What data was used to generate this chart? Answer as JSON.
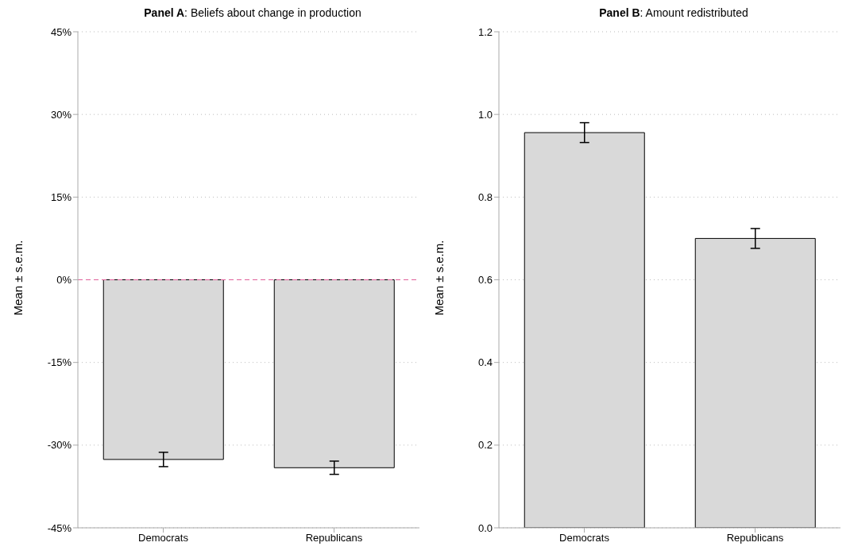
{
  "chart_data": [
    {
      "type": "bar",
      "title": "Panel A: Beliefs about change in production",
      "ylabel": "Mean ± s.e.m.",
      "categories": [
        "Democrats",
        "Republicans"
      ],
      "values": [
        -32.6,
        -34.1
      ],
      "errors": [
        1.3,
        1.2
      ],
      "color": "#d9d9d9",
      "ylim": [
        -45,
        45
      ],
      "yticks": [
        {
          "value": -45,
          "label": "-45%"
        },
        {
          "value": -30,
          "label": "-30%"
        },
        {
          "value": -15,
          "label": "-15%"
        },
        {
          "value": 0,
          "label": "0%"
        },
        {
          "value": 15,
          "label": "15%"
        },
        {
          "value": 30,
          "label": "30%"
        },
        {
          "value": 45,
          "label": "45%"
        }
      ],
      "grid": "y",
      "ref_lines": [
        {
          "axis": "y",
          "value": 0,
          "color": "#e0609a",
          "line_style": "dashed"
        }
      ]
    },
    {
      "type": "bar",
      "title": "Panel B: Amount redistributed",
      "ylabel": "Mean ± s.e.m.",
      "categories": [
        "Democrats",
        "Republicans"
      ],
      "values": [
        0.956,
        0.7
      ],
      "errors": [
        0.024,
        0.024
      ],
      "color": "#d9d9d9",
      "ylim": [
        0,
        1.2
      ],
      "yticks": [
        {
          "value": 0,
          "label": "0.0"
        },
        {
          "value": 0.2,
          "label": "0.2"
        },
        {
          "value": 0.4,
          "label": "0.4"
        },
        {
          "value": 0.6,
          "label": "0.6"
        },
        {
          "value": 0.8,
          "label": "0.8"
        },
        {
          "value": 1,
          "label": "1.0"
        },
        {
          "value": 1.2,
          "label": "1.2"
        }
      ],
      "grid": "y"
    }
  ]
}
